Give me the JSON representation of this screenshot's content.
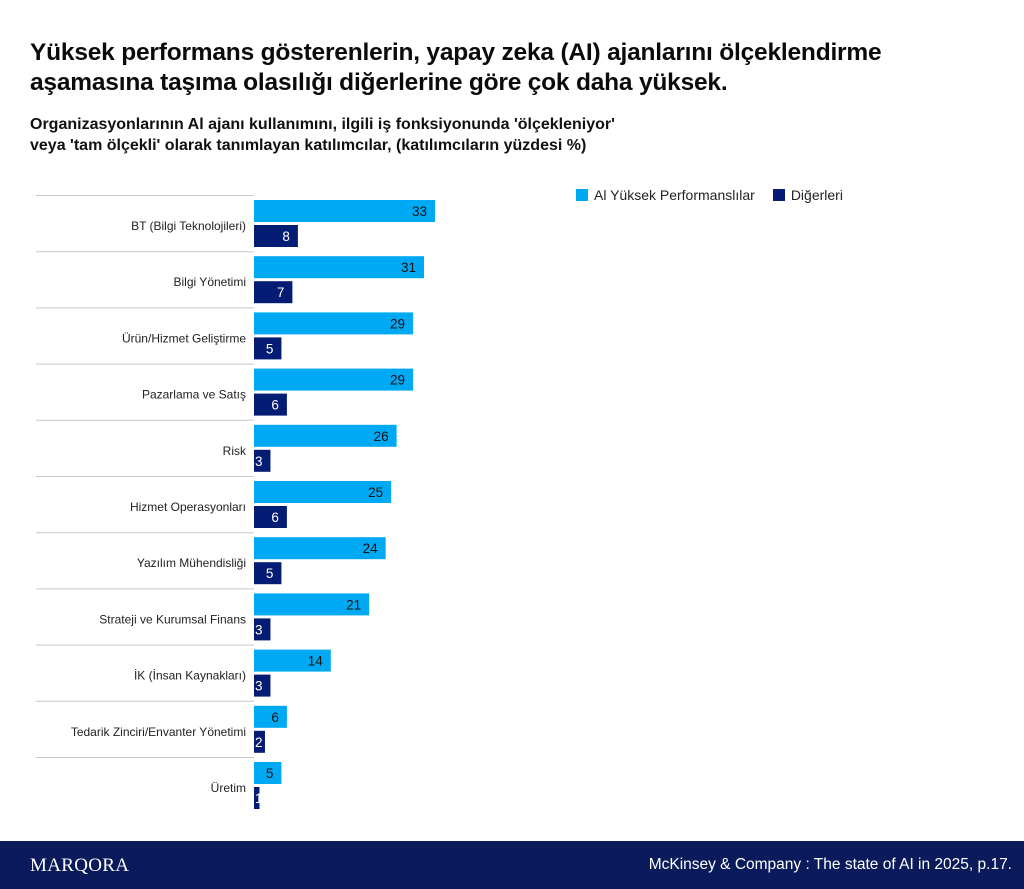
{
  "header": {
    "title": "Yüksek performans gösterenlerin, yapay zeka (AI) ajanlarını ölçeklendirme aşamasına taşıma olasılığı diğerlerine göre çok daha yüksek.",
    "subtitle_line1": "Organizasyonlarının Al ajanı kullanımını, ilgili iş fonksiyonunda 'ölçekleniyor'",
    "subtitle_line2": "veya 'tam ölçekli' olarak tanımlayan katılımcılar, (katılımcıların yüzdesi %)"
  },
  "legend": {
    "items": [
      {
        "label": "Al Yüksek Performanslılar",
        "color": "#00a9f4"
      },
      {
        "label": "Diğerleri",
        "color": "#051c74"
      }
    ],
    "placement": "top-right"
  },
  "chart_data": {
    "type": "bar",
    "orientation": "horizontal",
    "title": "Yüksek performans gösterenlerin, yapay zeka (AI) ajanlarını ölçeklendirme aşamasına taşıma olasılığı diğerlerine göre çok daha yüksek.",
    "xlabel": "",
    "ylabel": "",
    "unit": "%",
    "categories": [
      "BT (Bilgi Teknolojileri)",
      "Bilgi Yönetimi",
      "Ürün/Hizmet Geliştirme",
      "Pazarlama ve Satış",
      "Risk",
      "Hizmet Operasyonları",
      "Yazılım Mühendisliği",
      "Strateji ve Kurumsal Finans",
      "İK (İnsan Kaynakları)",
      "Tedarik Zinciri/Envanter Yönetimi",
      "Üretim"
    ],
    "series": [
      {
        "name": "Al Yüksek Performanslılar",
        "color": "#00a9f4",
        "values": [
          33,
          31,
          29,
          29,
          26,
          25,
          24,
          21,
          14,
          6,
          5
        ]
      },
      {
        "name": "Diğerleri",
        "color": "#051c74",
        "values": [
          8,
          7,
          5,
          6,
          3,
          6,
          5,
          3,
          3,
          2,
          1
        ]
      }
    ],
    "xlim": [
      0,
      33
    ],
    "grid": false,
    "data_labels": true,
    "legend_position": "top-right"
  },
  "footer": {
    "brand": "MARQORA",
    "source": "McKinsey & Company : The state of AI in 2025, p.17."
  }
}
